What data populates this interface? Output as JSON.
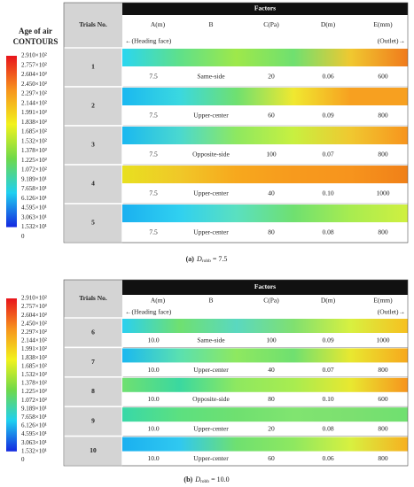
{
  "panels": [
    {
      "legend": {
        "title": [
          "Age of air",
          "CONTOURS"
        ],
        "labels": [
          "2.910×10²",
          "2.757×10²",
          "2.604×10²",
          "2.450×10²",
          "2.297×10²",
          "2.144×10²",
          "1.991×10²",
          "1.838×10²",
          "1.685×10²",
          "1.532×10²",
          "1.378×10²",
          "1.225×10²",
          "1.072×10²",
          "9.189×10¹",
          "7.658×10¹",
          "6.126×10¹",
          "4.595×10¹",
          "3.063×10¹",
          "1.532×10¹",
          "0"
        ]
      },
      "table": {
        "trials_header": "Trials No.",
        "factors_header": "Factors",
        "columns": [
          "A(m)",
          "B",
          "C(Pa)",
          "D(m)",
          "E(mm)"
        ],
        "left_note": "←(Heading face)",
        "right_note": "(Outlet)→",
        "rows": [
          [
            "1",
            "7.5",
            "Same-side",
            "20",
            "0.06",
            "600"
          ],
          [
            "2",
            "7.5",
            "Upper-center",
            "60",
            "0.09",
            "800"
          ],
          [
            "3",
            "7.5",
            "Opposite-side",
            "100",
            "0.07",
            "800"
          ],
          [
            "4",
            "7.5",
            "Upper-center",
            "40",
            "0.10",
            "1000"
          ],
          [
            "5",
            "7.5",
            "Upper-center",
            "80",
            "0.08",
            "800"
          ]
        ]
      },
      "caption": {
        "label": "(a)",
        "symbol": "D",
        "subscript": "robb",
        "text": " = 7.5"
      }
    },
    {
      "legend": {
        "labels": [
          "2.910×10²",
          "2.757×10²",
          "2.604×10²",
          "2.450×10²",
          "2.297×10²",
          "2.144×10²",
          "1.991×10²",
          "1.838×10²",
          "1.685×10²",
          "1.532×10²",
          "1.378×10²",
          "1.225×10²",
          "1.072×10²",
          "9.189×10¹",
          "7.658×10¹",
          "6.126×10¹",
          "4.595×10¹",
          "3.063×10¹",
          "1.532×10¹",
          "0"
        ]
      },
      "table": {
        "trials_header": "Trials No.",
        "factors_header": "Factors",
        "columns": [
          "A(m)",
          "B",
          "C(Pa)",
          "D(m)",
          "E(mm)"
        ],
        "left_note": "←(Heading face)",
        "right_note": "(Outlet)→",
        "rows": [
          [
            "6",
            "10.0",
            "Same-side",
            "100",
            "0.09",
            "1000"
          ],
          [
            "7",
            "10.0",
            "Upper-center",
            "40",
            "0.07",
            "800"
          ],
          [
            "8",
            "10.0",
            "Opposite-side",
            "80",
            "0.10",
            "600"
          ],
          [
            "9",
            "10.0",
            "Upper-center",
            "20",
            "0.08",
            "800"
          ],
          [
            "10",
            "10.0",
            "Upper-center",
            "60",
            "0.06",
            "800"
          ]
        ]
      },
      "caption": {
        "label": "(b)",
        "symbol": "D",
        "subscript": "robb",
        "text": " = 10.0"
      }
    }
  ]
}
